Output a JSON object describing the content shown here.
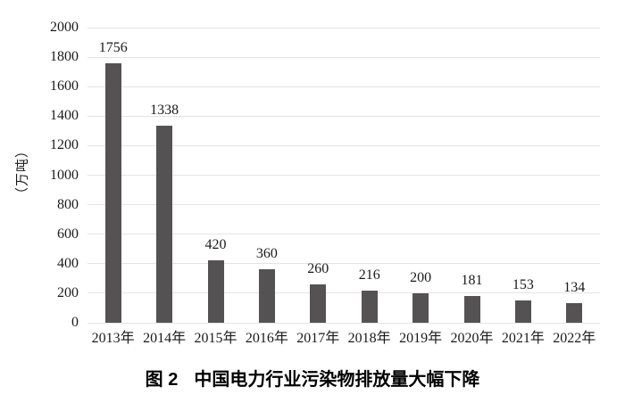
{
  "figure": {
    "caption_label": "图 2",
    "caption_text": "中国电力行业污染物排放量大幅下降"
  },
  "chart_data": {
    "type": "bar",
    "title": "图 2 中国电力行业污染物排放量大幅下降",
    "categories": [
      "2013年",
      "2014年",
      "2015年",
      "2016年",
      "2017年",
      "2018年",
      "2019年",
      "2020年",
      "2021年",
      "2022年"
    ],
    "values": [
      1756,
      1338,
      420,
      360,
      260,
      216,
      200,
      181,
      153,
      134
    ],
    "xlabel": "",
    "ylabel": "（万吨）",
    "ylim": [
      0,
      2000
    ],
    "y_ticks": [
      0,
      200,
      400,
      600,
      800,
      1000,
      1200,
      1400,
      1600,
      1800,
      2000
    ],
    "grid": true,
    "legend_position": "none",
    "value_labels_shown": true,
    "bar_color": "#555254",
    "gridline_color": "#e3e3e3",
    "text_color": "#1a1a1a"
  }
}
